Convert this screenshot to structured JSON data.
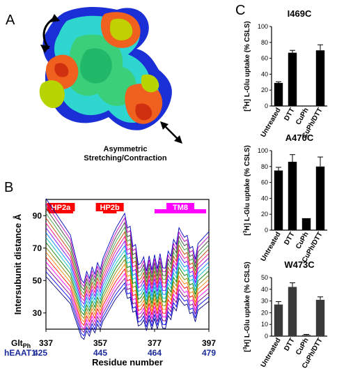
{
  "panels": {
    "A": {
      "letter": "A",
      "caption_line1": "Asymmetric",
      "caption_line2": "Stretching/Contraction"
    },
    "B": {
      "letter": "B",
      "ylabel": "Intersubunit distance Å",
      "xlabel": "Residue number",
      "row1_label": "Glt",
      "row1_sub": "Ph",
      "row2_label": "hEAAT1",
      "yticks": [
        "30",
        "50",
        "70",
        "90"
      ],
      "xticks_top": [
        "337",
        "357",
        "377",
        "397"
      ],
      "xticks_bottom": [
        "425",
        "445",
        "464",
        "479"
      ],
      "regions": [
        {
          "label": "HP2a",
          "color": "#ff0000",
          "start": 338,
          "end": 347
        },
        {
          "label": "HP2b",
          "color": "#ff0000",
          "start": 358,
          "end": 363
        },
        {
          "label": "TM8",
          "color": "#ff00ff",
          "start": 377,
          "end": 396
        }
      ],
      "line_colors": [
        "#000080",
        "#0000ff",
        "#800080",
        "#ff00ff",
        "#ff0000",
        "#ff8000",
        "#808000",
        "#008000",
        "#00c0c0",
        "#0080ff",
        "#8000ff",
        "#ff0080",
        "#c04000",
        "#40a040",
        "#404040",
        "#c000c0",
        "#0000c0"
      ]
    },
    "C": {
      "letter": "C"
    }
  },
  "chart_data": [
    {
      "type": "bar",
      "title": "I469C",
      "ylabel": "[3H] L-Glu uptake (% CSLS)",
      "ylabel_sup": "3",
      "ylabel_rest": "H] L-Glu uptake (% CSLS)",
      "categories": [
        "Untreated",
        "DTT",
        "CuPh",
        "CuPh/DTT"
      ],
      "values": [
        29,
        67,
        0,
        70
      ],
      "errors": [
        1.5,
        3,
        0,
        7
      ],
      "ylim": [
        0,
        100
      ],
      "yticks": [
        0,
        20,
        40,
        60,
        80,
        100
      ],
      "bar_color": "#000000"
    },
    {
      "type": "bar",
      "title": "A470C",
      "ylabel": "[3H] L-Glu uptake (% CSLS)",
      "ylabel_sup": "3",
      "ylabel_rest": "H] L-Glu uptake (% CSLS)",
      "categories": [
        "Untreated",
        "DTT",
        "CuPh",
        "CuPh/DTT"
      ],
      "values": [
        75,
        86,
        15,
        80
      ],
      "errors": [
        4,
        9,
        0,
        12
      ],
      "ylim": [
        0,
        100
      ],
      "yticks": [
        0,
        20,
        40,
        60,
        80,
        100
      ],
      "bar_color": "#000000"
    },
    {
      "type": "bar",
      "title": "W473C",
      "ylabel": "[3H] L-Glu uptake (% CSLS)",
      "ylabel_sup": "3",
      "ylabel_rest": "H] L-Glu uptake (% CSLS)",
      "categories": [
        "Untreated",
        "DTT",
        "CuPh",
        "CuPh/DTT"
      ],
      "values": [
        27,
        42,
        1,
        31
      ],
      "errors": [
        2.5,
        3.5,
        0.5,
        2.5
      ],
      "ylim": [
        0,
        50
      ],
      "yticks": [
        0,
        10,
        20,
        30,
        40,
        50
      ],
      "bar_color": "#3a3a3a"
    }
  ]
}
